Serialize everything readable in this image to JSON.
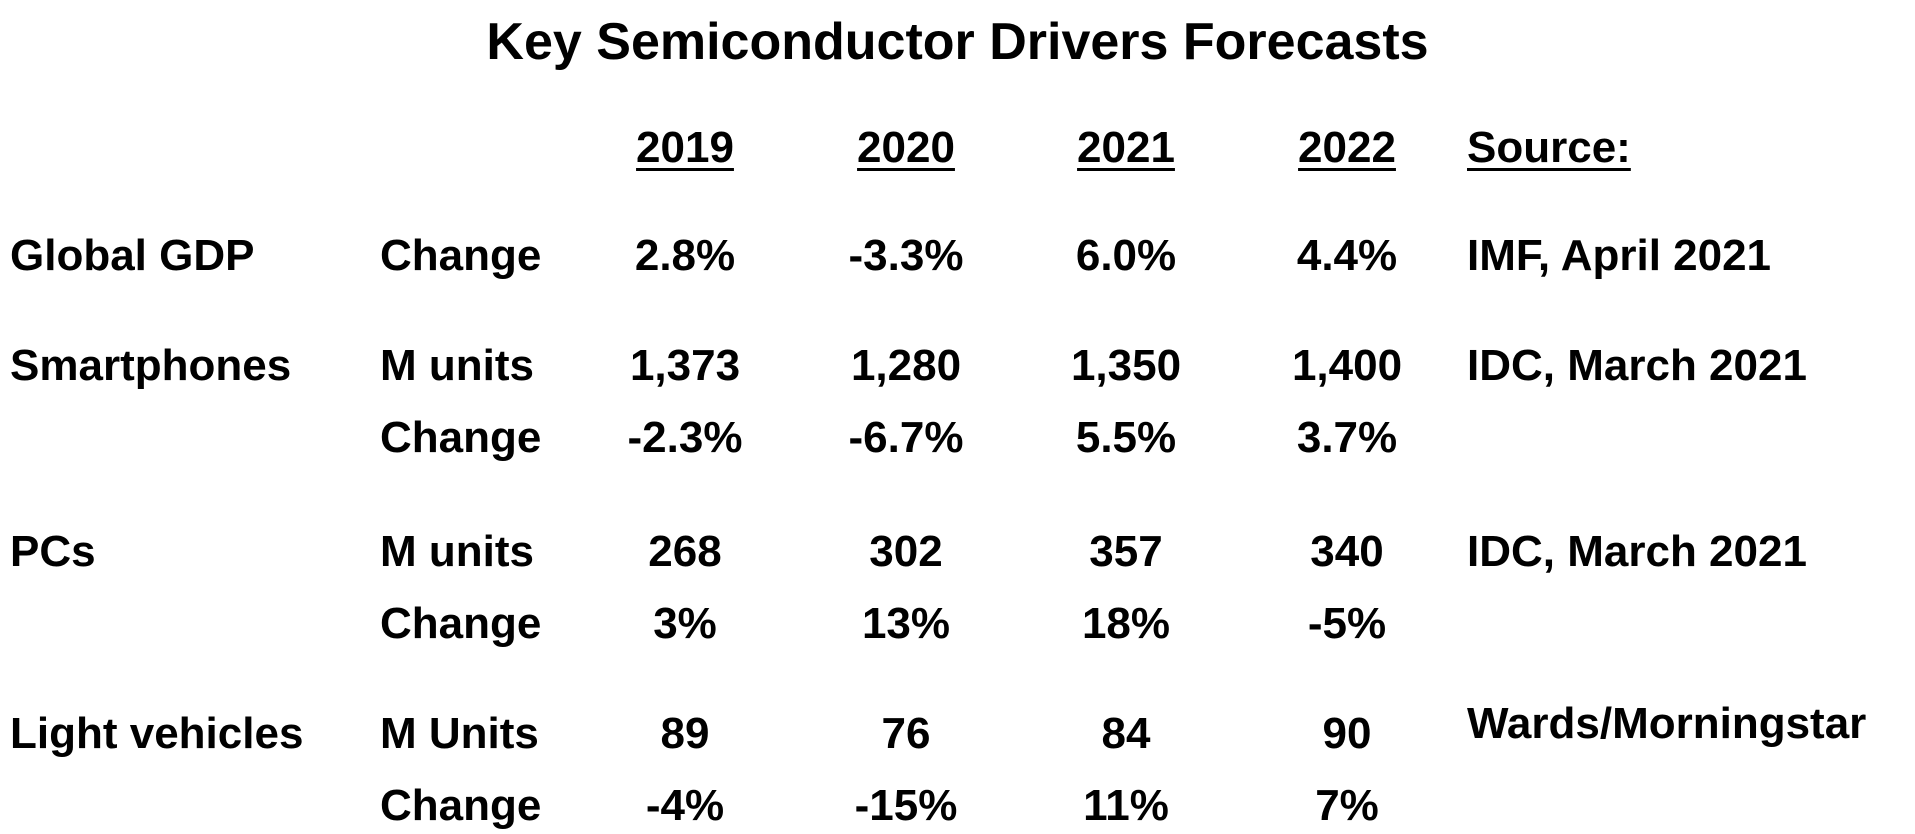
{
  "title": "Key Semiconductor Drivers Forecasts",
  "header": {
    "years": [
      "2019",
      "2020",
      "2021",
      "2022"
    ],
    "source": "Source:"
  },
  "rows": [
    {
      "category": "Global GDP",
      "metric": "Change",
      "values": [
        "2.8%",
        "-3.3%",
        "6.0%",
        "4.4%"
      ],
      "source": "IMF, April 2021"
    },
    {
      "category": "Smartphones",
      "metric": "M units",
      "values": [
        "1,373",
        "1,280",
        "1,350",
        "1,400"
      ],
      "source": "IDC, March 2021"
    },
    {
      "category": "",
      "metric": "Change",
      "values": [
        "-2.3%",
        "-6.7%",
        "5.5%",
        "3.7%"
      ],
      "source": ""
    },
    {
      "category": "PCs",
      "metric": "M units",
      "values": [
        "268",
        "302",
        "357",
        "340"
      ],
      "source": "IDC, March 2021"
    },
    {
      "category": "",
      "metric": "Change",
      "values": [
        "3%",
        "13%",
        "18%",
        "-5%"
      ],
      "source": ""
    },
    {
      "category": "Light vehicles",
      "metric": "M Units",
      "values": [
        "89",
        "76",
        "84",
        "90"
      ],
      "source": "Wards/Morningstar"
    },
    {
      "category": "",
      "metric": "Change",
      "values": [
        "-4%",
        "-15%",
        "11%",
        "7%"
      ],
      "source": ""
    }
  ]
}
